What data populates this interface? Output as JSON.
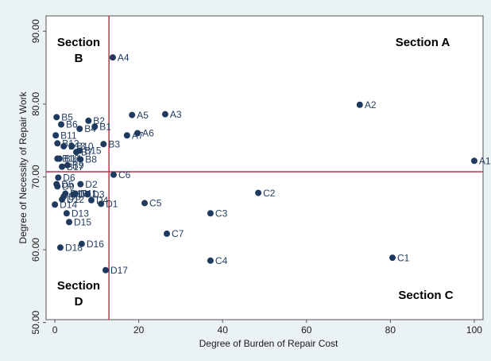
{
  "chart_data": {
    "type": "scatter",
    "x_label": "Degree of Burden of Repair Cost",
    "y_label": "Degree of Necessity of Repair Work",
    "xlim": [
      -2.1,
      102.1
    ],
    "ylim": [
      50.4,
      92.1
    ],
    "xticks": [
      0,
      20,
      40,
      60,
      80,
      100
    ],
    "yticks": [
      {
        "value": 50,
        "label": "50.00"
      },
      {
        "value": 60,
        "label": "60.00"
      },
      {
        "value": 70,
        "label": "70.00"
      },
      {
        "value": 80,
        "label": "80.00"
      },
      {
        "value": 90,
        "label": "90.00"
      }
    ],
    "grid": false,
    "color": "#1f3a5f",
    "reference_lines": {
      "x": 12.9,
      "y": 70.7,
      "color": "#c0304a"
    },
    "sections": [
      [
        "Section A"
      ],
      [
        "Section",
        "B"
      ],
      [
        "Section C"
      ],
      [
        "Section",
        "D"
      ]
    ],
    "labels": [
      "A1",
      "A2",
      "A3",
      "A4",
      "A5",
      "A6",
      "A7",
      "B1",
      "B2",
      "B3",
      "B4",
      "B5",
      "B6",
      "B7",
      "B8",
      "B9",
      "B10",
      "B11",
      "B12",
      "B13",
      "B14",
      "B15",
      "B16",
      "B17",
      "C1",
      "C2",
      "C3",
      "C4",
      "C5",
      "C6",
      "C7",
      "D1",
      "D2",
      "D3",
      "D4",
      "D5",
      "D6",
      "D7",
      "D8",
      "D9",
      "D10",
      "D11",
      "D12",
      "D13",
      "D14",
      "D15",
      "D16",
      "D17",
      "D18"
    ],
    "x": [
      100,
      72.7,
      26.3,
      13.8,
      18.4,
      19.7,
      17.2,
      9.5,
      8.0,
      11.6,
      5.9,
      0.4,
      1.5,
      5.1,
      6.1,
      3.0,
      4.0,
      0.2,
      0.6,
      2.1,
      1.1,
      5.9,
      0.6,
      1.7,
      80.5,
      48.5,
      37.1,
      37.1,
      21.4,
      14.0,
      26.7,
      11.0,
      6.1,
      7.8,
      8.7,
      0.4,
      0.8,
      4.4,
      2.1,
      0.6,
      2.5,
      4.9,
      1.7,
      2.8,
      0,
      3.4,
      6.4,
      12.1,
      1.3
    ],
    "values": [
      72.2,
      79.9,
      78.6,
      86.4,
      78.5,
      76.0,
      75.7,
      76.9,
      77.7,
      74.5,
      76.6,
      78.2,
      77.2,
      73.4,
      72.4,
      71.6,
      74.2,
      75.7,
      74.6,
      74.2,
      72.5,
      73.6,
      72.5,
      71.4,
      58.9,
      67.8,
      65.0,
      58.5,
      66.4,
      70.3,
      62.2,
      66.3,
      69.0,
      67.6,
      66.8,
      69.0,
      69.9,
      67.6,
      67.3,
      68.7,
      67.7,
      67.7,
      66.9,
      65.0,
      66.2,
      63.8,
      60.8,
      57.2,
      60.3
    ]
  }
}
